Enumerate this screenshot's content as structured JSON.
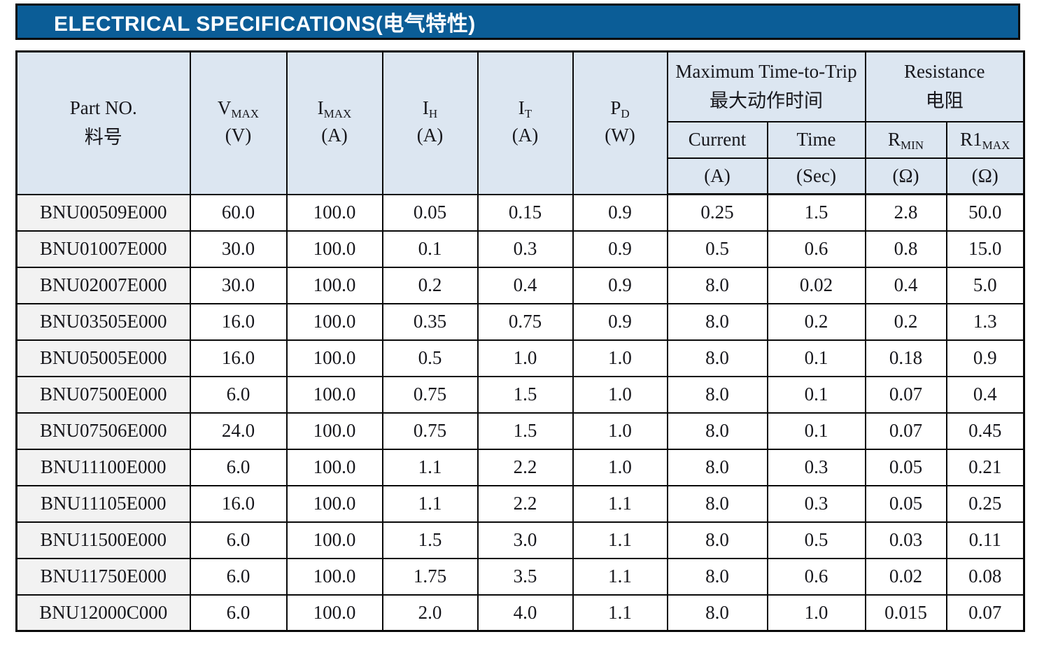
{
  "title": {
    "en": "ELECTRICAL SPECIFICATIONS",
    "cn": "(电气特性)"
  },
  "colors": {
    "title_bar_bg": "#0b5d97",
    "title_text": "#ffffff",
    "table_header_bg": "#dce6f1",
    "part_column_bg": "#f2f2f2",
    "border": "#0a0a0a"
  },
  "table": {
    "header": {
      "part": {
        "line1": "Part NO.",
        "line2": "料号"
      },
      "cols": [
        {
          "base": "V",
          "sub": "MAX",
          "unit": "(V)"
        },
        {
          "base": "I",
          "sub": "MAX",
          "unit": "(A)"
        },
        {
          "base": "I",
          "sub": "H",
          "unit": "(A)"
        },
        {
          "base": "I",
          "sub": "T",
          "unit": "(A)"
        },
        {
          "base": "P",
          "sub": "D",
          "unit": "(W)"
        }
      ],
      "groups": [
        {
          "line1": "Maximum Time-to-Trip",
          "line2": "最大动作时间",
          "subcols": [
            {
              "base": "Current",
              "sub": "",
              "unit": "(A)"
            },
            {
              "base": "Time",
              "sub": "",
              "unit": "(Sec)"
            }
          ]
        },
        {
          "line1": "Resistance",
          "line2": "电阻",
          "subcols": [
            {
              "base": "R",
              "sub": "MIN",
              "unit": "(Ω)"
            },
            {
              "base": "R1",
              "sub": "MAX",
              "unit": "(Ω)"
            }
          ]
        }
      ]
    },
    "rows": [
      {
        "part_no": "BNU00509E000",
        "values": [
          "60.0",
          "100.0",
          "0.05",
          "0.15",
          "0.9",
          "0.25",
          "1.5",
          "2.8",
          "50.0"
        ]
      },
      {
        "part_no": "BNU01007E000",
        "values": [
          "30.0",
          "100.0",
          "0.1",
          "0.3",
          "0.9",
          "0.5",
          "0.6",
          "0.8",
          "15.0"
        ]
      },
      {
        "part_no": "BNU02007E000",
        "values": [
          "30.0",
          "100.0",
          "0.2",
          "0.4",
          "0.9",
          "8.0",
          "0.02",
          "0.4",
          "5.0"
        ]
      },
      {
        "part_no": "BNU03505E000",
        "values": [
          "16.0",
          "100.0",
          "0.35",
          "0.75",
          "0.9",
          "8.0",
          "0.2",
          "0.2",
          "1.3"
        ]
      },
      {
        "part_no": "BNU05005E000",
        "values": [
          "16.0",
          "100.0",
          "0.5",
          "1.0",
          "1.0",
          "8.0",
          "0.1",
          "0.18",
          "0.9"
        ]
      },
      {
        "part_no": "BNU07500E000",
        "values": [
          "6.0",
          "100.0",
          "0.75",
          "1.5",
          "1.0",
          "8.0",
          "0.1",
          "0.07",
          "0.4"
        ]
      },
      {
        "part_no": "BNU07506E000",
        "values": [
          "24.0",
          "100.0",
          "0.75",
          "1.5",
          "1.0",
          "8.0",
          "0.1",
          "0.07",
          "0.45"
        ]
      },
      {
        "part_no": "BNU11100E000",
        "values": [
          "6.0",
          "100.0",
          "1.1",
          "2.2",
          "1.0",
          "8.0",
          "0.3",
          "0.05",
          "0.21"
        ]
      },
      {
        "part_no": "BNU11105E000",
        "values": [
          "16.0",
          "100.0",
          "1.1",
          "2.2",
          "1.1",
          "8.0",
          "0.3",
          "0.05",
          "0.25"
        ]
      },
      {
        "part_no": "BNU11500E000",
        "values": [
          "6.0",
          "100.0",
          "1.5",
          "3.0",
          "1.1",
          "8.0",
          "0.5",
          "0.03",
          "0.11"
        ]
      },
      {
        "part_no": "BNU11750E000",
        "values": [
          "6.0",
          "100.0",
          "1.75",
          "3.5",
          "1.1",
          "8.0",
          "0.6",
          "0.02",
          "0.08"
        ]
      },
      {
        "part_no": "BNU12000C000",
        "values": [
          "6.0",
          "100.0",
          "2.0",
          "4.0",
          "1.1",
          "8.0",
          "1.0",
          "0.015",
          "0.07"
        ]
      }
    ]
  }
}
